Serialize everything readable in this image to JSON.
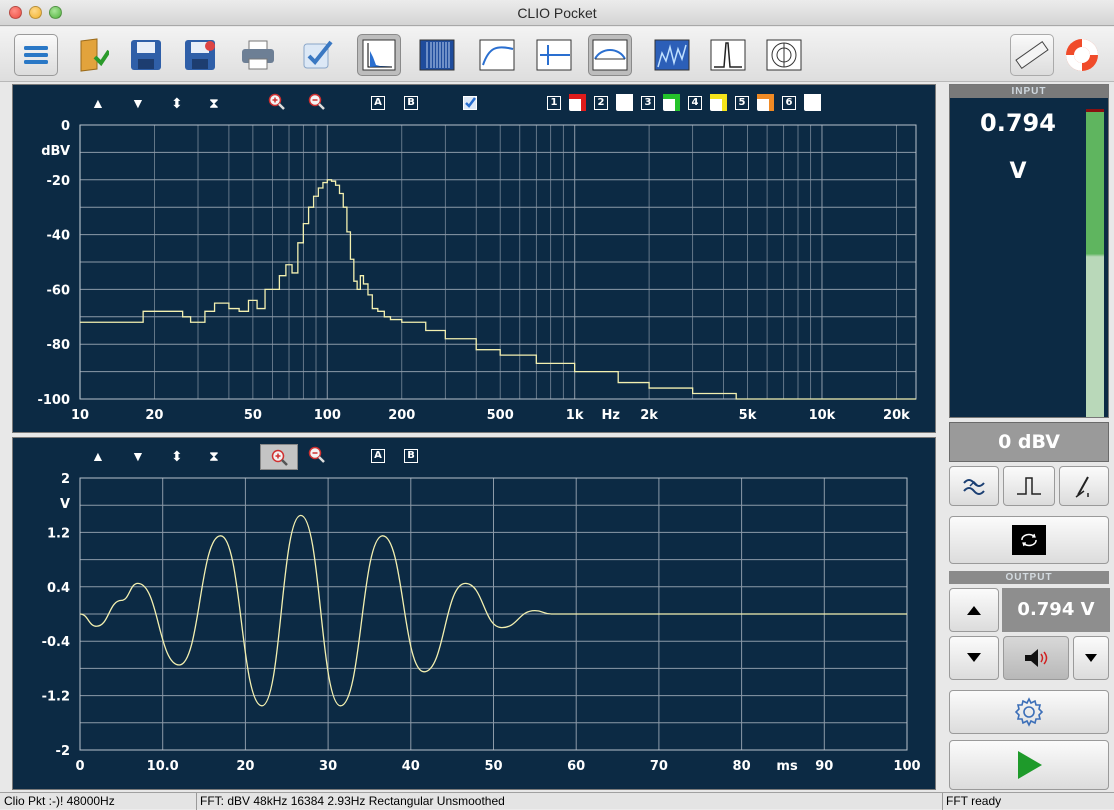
{
  "window": {
    "title": "CLIO Pocket"
  },
  "fft_panel": {
    "toolbar": {
      "up": "▲",
      "down": "▼",
      "expand": "⬍",
      "collapse": "⧗",
      "marker_a": "A",
      "marker_b": "B",
      "overlays": [
        "1",
        "2",
        "3",
        "4",
        "5",
        "6"
      ]
    },
    "overlay_colors": [
      "#e01b1b",
      "#ffffff",
      "#24c22a",
      "#f5e31a",
      "#f08a24",
      "#ffffff"
    ],
    "y_unit": "dBV",
    "x_unit": "Hz"
  },
  "time_panel": {
    "toolbar": {
      "up": "▲",
      "down": "▼",
      "expand": "⬍",
      "collapse": "⧗",
      "marker_a": "A",
      "marker_b": "B"
    },
    "y_unit": "V",
    "x_unit": "ms"
  },
  "chart_data": [
    {
      "type": "line",
      "title": "",
      "xlabel": "Hz",
      "ylabel": "dBV",
      "x_scale": "log",
      "xlim": [
        10,
        24000
      ],
      "ylim": [
        -100,
        0
      ],
      "x_ticks": [
        {
          "v": 10,
          "label": "10"
        },
        {
          "v": 20,
          "label": "20"
        },
        {
          "v": 50,
          "label": "50"
        },
        {
          "v": 100,
          "label": "100"
        },
        {
          "v": 200,
          "label": "200"
        },
        {
          "v": 500,
          "label": "500"
        },
        {
          "v": 1000,
          "label": "1k"
        },
        {
          "v": 2000,
          "label": "2k"
        },
        {
          "v": 5000,
          "label": "5k"
        },
        {
          "v": 10000,
          "label": "10k"
        },
        {
          "v": 20000,
          "label": "20k"
        }
      ],
      "y_ticks": [
        {
          "v": 0,
          "label": "0"
        },
        {
          "v": -20,
          "label": "-20"
        },
        {
          "v": -40,
          "label": "-40"
        },
        {
          "v": -60,
          "label": "-60"
        },
        {
          "v": -80,
          "label": "-80"
        },
        {
          "v": -100,
          "label": "-100"
        }
      ],
      "grid": true,
      "color": "#f3f0b0",
      "series": [
        {
          "x": [
            10,
            14,
            18,
            22,
            26,
            28,
            32,
            35,
            40,
            44,
            48,
            52,
            56,
            60,
            64,
            68,
            72,
            76,
            80,
            84,
            88,
            92,
            96,
            100,
            104,
            108,
            112,
            116,
            120,
            124,
            128,
            132,
            136,
            140,
            146,
            152,
            160,
            170,
            180,
            200,
            250,
            300,
            400,
            500,
            700,
            1000,
            1500,
            2000,
            3000,
            4500,
            5000,
            10000,
            20000,
            24000
          ],
          "y": [
            -72,
            -72,
            -68,
            -68,
            -70,
            -72,
            -68,
            -65,
            -67,
            -68,
            -64,
            -67,
            -60,
            -60,
            -55,
            -51,
            -54,
            -43,
            -36,
            -30,
            -26,
            -23,
            -21,
            -20,
            -20.5,
            -22,
            -25,
            -30,
            -39,
            -49,
            -57,
            -60,
            -55,
            -58,
            -62,
            -67,
            -68,
            -70,
            -71,
            -72,
            -75,
            -78,
            -82,
            -84,
            -87,
            -90,
            -94,
            -96,
            -98,
            -100,
            -100,
            -100,
            -100,
            -100
          ]
        }
      ]
    },
    {
      "type": "line",
      "title": "",
      "xlabel": "ms",
      "ylabel": "V",
      "xlim": [
        0,
        100
      ],
      "ylim": [
        -2,
        2
      ],
      "x_ticks": [
        {
          "v": 0,
          "label": "0"
        },
        {
          "v": 10,
          "label": "10.0"
        },
        {
          "v": 20,
          "label": "20"
        },
        {
          "v": 30,
          "label": "30"
        },
        {
          "v": 40,
          "label": "40"
        },
        {
          "v": 50,
          "label": "50"
        },
        {
          "v": 60,
          "label": "60"
        },
        {
          "v": 70,
          "label": "70"
        },
        {
          "v": 80,
          "label": "80"
        },
        {
          "v": 90,
          "label": "90"
        },
        {
          "v": 100,
          "label": "100"
        }
      ],
      "y_ticks": [
        {
          "v": 2,
          "label": "2"
        },
        {
          "v": 1.2,
          "label": "1.2"
        },
        {
          "v": 0.4,
          "label": "0.4"
        },
        {
          "v": -0.4,
          "label": "-0.4"
        },
        {
          "v": -1.2,
          "label": "-1.2"
        },
        {
          "v": -2,
          "label": "-2"
        }
      ],
      "grid": true,
      "color": "#f3f0b0",
      "series": [
        {
          "description": "windowed tone burst ~100 Hz, peak ~1.45 V at 26.5 ms, ends near 57 ms",
          "x": [
            0,
            2,
            5,
            7,
            12,
            17,
            22,
            26.7,
            31.5,
            36.6,
            41.6,
            46.6,
            51,
            55,
            57,
            100
          ],
          "y": [
            0,
            -0.18,
            0.2,
            0.45,
            -0.75,
            1.15,
            -1.35,
            1.45,
            -1.35,
            1.15,
            -0.85,
            0.45,
            -0.2,
            0.05,
            0,
            0
          ]
        }
      ]
    }
  ],
  "input": {
    "header": "INPUT",
    "value": "0.794",
    "unit": "V",
    "meter_level": 0.62,
    "level_dbv": "0 dBV"
  },
  "output": {
    "header": "OUTPUT",
    "value": "0.794 V"
  },
  "status": {
    "device": "Clio Pkt :-)! 48000Hz",
    "fft_info": "FFT:  dBV  48kHz   16384  2.93Hz  Rectangular  Unsmoothed",
    "state": "FFT ready"
  }
}
